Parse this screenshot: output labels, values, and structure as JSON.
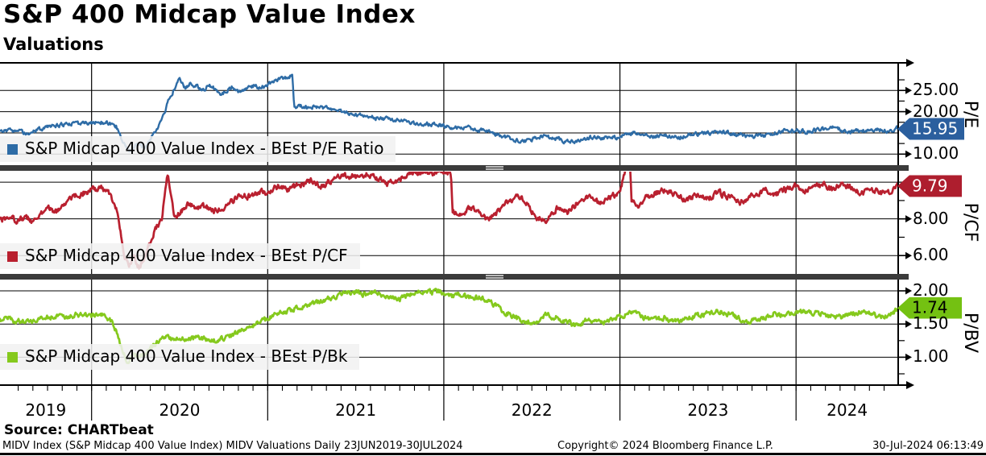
{
  "chart_data": {
    "type": "line",
    "title": "S&P 400 Midcap Value Index",
    "subtitle": "Valuations",
    "x_range": [
      2019.48,
      2024.58
    ],
    "x_tick_years": [
      2019,
      2020,
      2021,
      2022,
      2023,
      2024
    ],
    "frequency_note": "Daily 23JUN2019-30JUL2024",
    "panels": [
      {
        "axis_title": "P/E",
        "legend": "S&P Midcap 400 Value Index - BEst P/E Ratio",
        "color": "#2e6ca6",
        "last_value": "15.95",
        "last_value_num": 15.95,
        "badge_color": "#2b5f9e",
        "badge_text_color": "#ffffff",
        "ylim": [
          7.4,
          31.5
        ],
        "grid": [
          25,
          20,
          15,
          10
        ],
        "ticks": [
          {
            "v": 25,
            "label": "25.00"
          },
          {
            "v": 20,
            "label": "20.00"
          },
          {
            "v": 10,
            "label": "10.00"
          }
        ],
        "minor": [
          27.5,
          22.5,
          17.5,
          12.5
        ],
        "series": [
          2019.48,
          15.3,
          2019.53,
          15.6,
          2019.58,
          15.4,
          2019.62,
          15.1,
          2019.67,
          15.4,
          2019.71,
          15.9,
          2019.75,
          16.3,
          2019.83,
          16.9,
          2019.92,
          17.2,
          2020.0,
          17.2,
          2020.05,
          17.5,
          2020.1,
          17.3,
          2020.14,
          16.6,
          2020.18,
          12.5,
          2020.22,
          10.4,
          2020.26,
          12.2,
          2020.3,
          11.4,
          2020.34,
          13.8,
          2020.38,
          16.5,
          2020.42,
          20.5,
          2020.45,
          24.0,
          2020.48,
          26.0,
          2020.5,
          28.0,
          2020.53,
          25.6,
          2020.56,
          26.5,
          2020.6,
          26.0,
          2020.63,
          25.0,
          2020.66,
          26.2,
          2020.7,
          25.5,
          2020.73,
          23.9,
          2020.76,
          24.8,
          2020.8,
          25.8,
          2020.84,
          24.4,
          2020.88,
          25.2,
          2020.92,
          26.0,
          2020.96,
          25.7,
          2021.0,
          26.3,
          2021.04,
          27.3,
          2021.08,
          27.8,
          2021.12,
          28.4,
          2021.14,
          28.4,
          2021.15,
          20.6,
          2021.18,
          21.6,
          2021.22,
          20.9,
          2021.26,
          21.3,
          2021.3,
          20.8,
          2021.34,
          21.0,
          2021.38,
          20.4,
          2021.42,
          19.9,
          2021.46,
          19.5,
          2021.5,
          19.3,
          2021.58,
          18.7,
          2021.67,
          18.3,
          2021.75,
          17.9,
          2021.83,
          17.3,
          2021.92,
          17.1,
          2022.0,
          16.7,
          2022.06,
          16.1,
          2022.12,
          16.4,
          2022.18,
          15.9,
          2022.25,
          15.2,
          2022.33,
          14.4,
          2022.4,
          13.5,
          2022.45,
          12.9,
          2022.5,
          13.5,
          2022.56,
          14.3,
          2022.62,
          13.9,
          2022.68,
          13.2,
          2022.74,
          13.0,
          2022.8,
          13.5,
          2022.85,
          14.1,
          2022.92,
          13.6,
          2023.0,
          14.1,
          2023.06,
          14.9,
          2023.12,
          15.1,
          2023.17,
          14.1,
          2023.25,
          14.4,
          2023.33,
          13.9,
          2023.42,
          14.6,
          2023.5,
          15.1,
          2023.56,
          15.3,
          2023.62,
          14.9,
          2023.68,
          14.6,
          2023.75,
          14.1,
          2023.83,
          14.5,
          2023.92,
          15.4,
          2024.0,
          15.5,
          2024.06,
          15.3,
          2024.12,
          15.7,
          2024.18,
          16.0,
          2024.22,
          16.3,
          2024.26,
          15.6,
          2024.3,
          15.1,
          2024.36,
          15.5,
          2024.44,
          15.8,
          2024.5,
          15.6,
          2024.55,
          15.8,
          2024.57,
          16.2,
          2024.58,
          15.95
        ]
      },
      {
        "axis_title": "P/CF",
        "legend": "S&P Midcap 400 Value Index - BEst P/CF",
        "color": "#b9202f",
        "last_value": "9.79",
        "last_value_num": 9.79,
        "badge_color": "#ae1e2e",
        "badge_text_color": "#ffffff",
        "ylim": [
          5.0,
          10.62
        ],
        "grid": [
          10,
          8,
          6
        ],
        "ticks": [
          {
            "v": 8,
            "label": "8.00"
          },
          {
            "v": 6,
            "label": "6.00"
          }
        ],
        "minor": [
          10,
          9,
          7
        ],
        "series": [
          2019.48,
          7.9,
          2019.53,
          8.2,
          2019.57,
          7.8,
          2019.62,
          8.1,
          2019.66,
          7.9,
          2019.71,
          8.3,
          2019.75,
          8.6,
          2019.8,
          8.4,
          2019.85,
          8.9,
          2019.9,
          9.2,
          2019.95,
          9.4,
          2020.0,
          9.6,
          2020.05,
          9.7,
          2020.1,
          9.4,
          2020.14,
          8.6,
          2020.18,
          6.2,
          2020.21,
          5.4,
          2020.24,
          6.0,
          2020.27,
          5.3,
          2020.3,
          5.9,
          2020.33,
          6.6,
          2020.36,
          7.4,
          2020.4,
          8.0,
          2020.43,
          10.5,
          2020.455,
          9.2,
          2020.47,
          8.0,
          2020.5,
          8.3,
          2020.55,
          8.8,
          2020.6,
          8.5,
          2020.65,
          8.7,
          2020.7,
          8.4,
          2020.75,
          8.6,
          2020.8,
          9.0,
          2020.85,
          9.3,
          2020.9,
          9.2,
          2020.95,
          9.5,
          2021.0,
          9.4,
          2021.06,
          9.8,
          2021.12,
          9.6,
          2021.18,
          9.9,
          2021.25,
          10.1,
          2021.31,
          9.8,
          2021.37,
          10.2,
          2021.43,
          10.4,
          2021.5,
          10.3,
          2021.56,
          10.5,
          2021.62,
          10.2,
          2021.68,
          9.9,
          2021.75,
          10.2,
          2021.82,
          10.5,
          2021.88,
          10.6,
          2021.94,
          10.5,
          2022.0,
          10.6,
          2022.04,
          10.4,
          2022.05,
          8.4,
          2022.1,
          8.1,
          2022.15,
          8.6,
          2022.2,
          8.3,
          2022.25,
          7.9,
          2022.3,
          8.3,
          2022.36,
          8.9,
          2022.42,
          9.3,
          2022.47,
          8.9,
          2022.52,
          8.1,
          2022.58,
          7.9,
          2022.64,
          8.6,
          2022.7,
          8.3,
          2022.76,
          8.9,
          2022.82,
          9.2,
          2022.88,
          8.9,
          2022.94,
          9.2,
          2023.0,
          9.4,
          2023.03,
          10.7,
          2023.06,
          10.8,
          2023.065,
          8.9,
          2023.1,
          8.7,
          2023.15,
          9.1,
          2023.2,
          9.4,
          2023.26,
          9.6,
          2023.32,
          9.3,
          2023.38,
          9.0,
          2023.44,
          9.3,
          2023.5,
          9.1,
          2023.56,
          9.4,
          2023.62,
          9.2,
          2023.68,
          8.9,
          2023.75,
          9.2,
          2023.82,
          9.6,
          2023.88,
          9.3,
          2023.94,
          9.6,
          2024.0,
          9.8,
          2024.05,
          9.5,
          2024.1,
          9.7,
          2024.16,
          9.9,
          2024.2,
          9.6,
          2024.26,
          9.9,
          2024.32,
          9.7,
          2024.38,
          9.4,
          2024.44,
          9.6,
          2024.5,
          9.4,
          2024.54,
          9.5,
          2024.57,
          9.8,
          2024.58,
          9.79
        ]
      },
      {
        "axis_title": "P/BV",
        "legend": "S&P Midcap 400 Value Index - BEst P/Bk",
        "color": "#85c91d",
        "last_value": "1.74",
        "last_value_num": 1.74,
        "badge_color": "#74c112",
        "badge_text_color": "#000000",
        "ylim": [
          0.58,
          2.17
        ],
        "grid": [
          2.0,
          1.5,
          1.0
        ],
        "ticks": [
          {
            "v": 2,
            "label": "2.00"
          },
          {
            "v": 1.5,
            "label": "1.50"
          },
          {
            "v": 1,
            "label": "1.00"
          }
        ],
        "minor": [
          1.75,
          1.25,
          0.75
        ],
        "series": [
          2019.48,
          1.56,
          2019.53,
          1.58,
          2019.57,
          1.52,
          2019.61,
          1.55,
          2019.65,
          1.51,
          2019.7,
          1.56,
          2019.75,
          1.6,
          2019.8,
          1.63,
          2019.85,
          1.61,
          2019.9,
          1.64,
          2019.95,
          1.65,
          2020.0,
          1.63,
          2020.05,
          1.65,
          2020.1,
          1.59,
          2020.14,
          1.4,
          2020.18,
          1.05,
          2020.21,
          0.93,
          2020.24,
          1.05,
          2020.27,
          0.97,
          2020.3,
          1.06,
          2020.33,
          1.12,
          2020.37,
          1.22,
          2020.41,
          1.32,
          2020.44,
          1.28,
          2020.47,
          1.25,
          2020.5,
          1.29,
          2020.55,
          1.26,
          2020.6,
          1.3,
          2020.65,
          1.27,
          2020.7,
          1.25,
          2020.75,
          1.28,
          2020.8,
          1.33,
          2020.85,
          1.4,
          2020.9,
          1.47,
          2020.95,
          1.52,
          2021.0,
          1.58,
          2021.06,
          1.66,
          2021.12,
          1.7,
          2021.18,
          1.75,
          2021.25,
          1.8,
          2021.31,
          1.85,
          2021.37,
          1.9,
          2021.43,
          1.95,
          2021.5,
          1.98,
          2021.56,
          1.94,
          2021.62,
          1.96,
          2021.68,
          1.92,
          2021.75,
          1.89,
          2021.82,
          1.95,
          2021.88,
          2.0,
          2021.94,
          1.97,
          2022.0,
          1.99,
          2022.05,
          1.92,
          2022.1,
          1.95,
          2022.16,
          1.88,
          2022.22,
          1.9,
          2022.28,
          1.8,
          2022.34,
          1.7,
          2022.4,
          1.61,
          2022.46,
          1.54,
          2022.52,
          1.5,
          2022.58,
          1.65,
          2022.64,
          1.6,
          2022.7,
          1.52,
          2022.76,
          1.48,
          2022.82,
          1.58,
          2022.88,
          1.52,
          2022.94,
          1.56,
          2023.0,
          1.6,
          2023.06,
          1.68,
          2023.12,
          1.62,
          2023.18,
          1.56,
          2023.25,
          1.6,
          2023.32,
          1.54,
          2023.38,
          1.58,
          2023.44,
          1.63,
          2023.5,
          1.67,
          2023.56,
          1.7,
          2023.62,
          1.64,
          2023.68,
          1.58,
          2023.75,
          1.55,
          2023.82,
          1.6,
          2023.88,
          1.66,
          2023.94,
          1.63,
          2024.0,
          1.66,
          2024.06,
          1.7,
          2024.12,
          1.67,
          2024.18,
          1.63,
          2024.25,
          1.6,
          2024.32,
          1.65,
          2024.38,
          1.69,
          2024.44,
          1.64,
          2024.5,
          1.61,
          2024.55,
          1.66,
          2024.57,
          1.72,
          2024.58,
          1.74
        ]
      }
    ]
  },
  "footer": {
    "source": "Source: CHARTbeat",
    "left": "MIDV Index (S&P Midcap 400 Value Index) MIDV Valuations  Daily 23JUN2019-30JUL2024",
    "center": "Copyright© 2024 Bloomberg Finance L.P.",
    "right": "30-Jul-2024 06:13:49"
  }
}
